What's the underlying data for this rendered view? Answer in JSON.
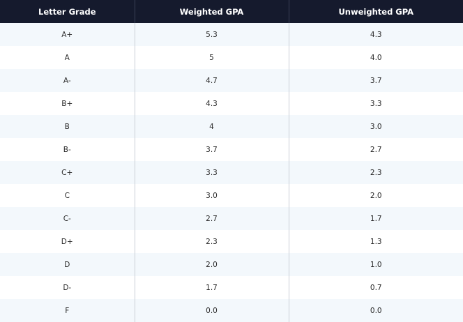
{
  "table": {
    "headers": [
      "Letter Grade",
      "Weighted GPA",
      "Unweighted GPA"
    ],
    "rows": [
      [
        "A+",
        "5.3",
        "4.3"
      ],
      [
        "A",
        "5",
        "4.0"
      ],
      [
        "A-",
        "4.7",
        "3.7"
      ],
      [
        "B+",
        "4.3",
        "3.3"
      ],
      [
        "B",
        "4",
        "3.0"
      ],
      [
        "B-",
        "3.7",
        "2.7"
      ],
      [
        "C+",
        "3.3",
        "2.3"
      ],
      [
        "C",
        "3.0",
        "2.0"
      ],
      [
        "C-",
        "2.7",
        "1.7"
      ],
      [
        "D+",
        "2.3",
        "1.3"
      ],
      [
        "D",
        "2.0",
        "1.0"
      ],
      [
        "D-",
        "1.7",
        "0.7"
      ],
      [
        "F",
        "0.0",
        "0.0"
      ]
    ]
  },
  "colors": {
    "header_background": "#151a2d",
    "header_text": "#ffffff",
    "row_stripe": "#f3f8fc",
    "row_plain": "#ffffff",
    "column_divider": "#c9ced6"
  }
}
